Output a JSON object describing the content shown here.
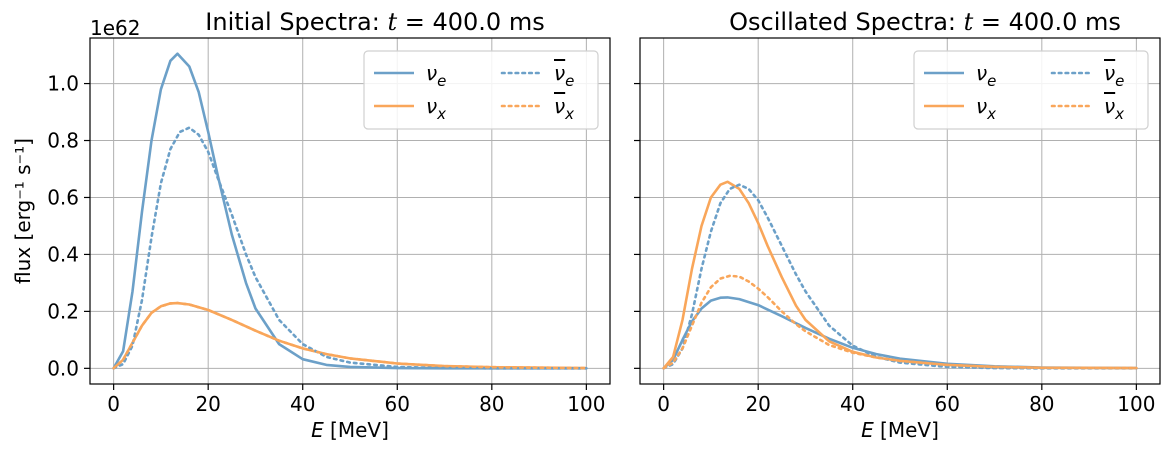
{
  "chart_data": [
    {
      "type": "line",
      "title": "Initial Spectra: t = 400.0 ms",
      "xlabel": "E [MeV]",
      "ylabel": "flux [erg⁻¹ s⁻¹]",
      "y_offset_label": "1e62",
      "xlim": [
        -5,
        105
      ],
      "ylim": [
        -0.055,
        1.16
      ],
      "xticks": [
        0,
        20,
        40,
        60,
        80,
        100
      ],
      "yticks": [
        0.0,
        0.2,
        0.4,
        0.6,
        0.8,
        1.0
      ],
      "grid": true,
      "legend_position": "top-right",
      "series": [
        {
          "name": "ν_e",
          "style": "solid",
          "color": "#6ca0c8",
          "x": [
            0,
            2,
            4,
            6,
            8,
            10,
            12,
            13.5,
            16,
            18,
            20,
            22,
            25,
            28,
            30,
            35,
            40,
            45,
            50,
            60,
            70,
            80,
            100
          ],
          "y": [
            0,
            0.06,
            0.27,
            0.55,
            0.8,
            0.98,
            1.08,
            1.105,
            1.06,
            0.97,
            0.83,
            0.68,
            0.47,
            0.3,
            0.21,
            0.085,
            0.032,
            0.012,
            0.005,
            0.001,
            0.0002,
            0,
            0
          ]
        },
        {
          "name": "ν_x",
          "style": "solid",
          "color": "#f9a65a",
          "x": [
            0,
            2,
            4,
            6,
            8,
            10,
            12,
            13.5,
            16,
            20,
            25,
            30,
            35,
            40,
            45,
            50,
            60,
            70,
            80,
            100
          ],
          "y": [
            0,
            0.03,
            0.09,
            0.15,
            0.195,
            0.218,
            0.228,
            0.229,
            0.224,
            0.205,
            0.17,
            0.132,
            0.097,
            0.07,
            0.05,
            0.035,
            0.017,
            0.008,
            0.004,
            0.001
          ]
        },
        {
          "name": "ν̅_e",
          "style": "dotted",
          "color": "#6ca0c8",
          "x": [
            0,
            2,
            4,
            6,
            8,
            10,
            12,
            14,
            16,
            18,
            20,
            22,
            25,
            28,
            30,
            35,
            40,
            45,
            50,
            60,
            70,
            80,
            100
          ],
          "y": [
            0,
            0.015,
            0.08,
            0.24,
            0.46,
            0.65,
            0.77,
            0.83,
            0.845,
            0.82,
            0.76,
            0.67,
            0.54,
            0.4,
            0.32,
            0.17,
            0.085,
            0.04,
            0.02,
            0.005,
            0.001,
            0,
            0
          ]
        },
        {
          "name": "ν̅_x",
          "style": "dotted",
          "color": "#f9a65a",
          "x": [
            0,
            2,
            4,
            6,
            8,
            10,
            12,
            13.5,
            16,
            20,
            25,
            30,
            35,
            40,
            45,
            50,
            60,
            70,
            80,
            100
          ],
          "y": [
            0,
            0.03,
            0.09,
            0.15,
            0.195,
            0.218,
            0.228,
            0.229,
            0.224,
            0.205,
            0.17,
            0.132,
            0.097,
            0.07,
            0.05,
            0.035,
            0.017,
            0.008,
            0.004,
            0.001
          ]
        }
      ]
    },
    {
      "type": "line",
      "title": "Oscillated Spectra: t = 400.0 ms",
      "xlabel": "E [MeV]",
      "ylabel": "",
      "xlim": [
        -5,
        105
      ],
      "ylim": [
        -0.055,
        1.16
      ],
      "xticks": [
        0,
        20,
        40,
        60,
        80,
        100
      ],
      "yticks": [
        0.0,
        0.2,
        0.4,
        0.6,
        0.8,
        1.0
      ],
      "grid": true,
      "legend_position": "top-right",
      "series": [
        {
          "name": "ν_e",
          "style": "solid",
          "color": "#6ca0c8",
          "x": [
            0,
            2,
            4,
            6,
            8,
            10,
            12,
            13.5,
            16,
            20,
            25,
            30,
            35,
            40,
            45,
            50,
            60,
            70,
            80,
            100
          ],
          "y": [
            0,
            0.03,
            0.1,
            0.165,
            0.21,
            0.238,
            0.248,
            0.249,
            0.243,
            0.222,
            0.183,
            0.142,
            0.104,
            0.072,
            0.05,
            0.034,
            0.016,
            0.007,
            0.003,
            0.001
          ]
        },
        {
          "name": "ν_x",
          "style": "solid",
          "color": "#f9a65a",
          "x": [
            0,
            2,
            4,
            6,
            8,
            10,
            12,
            13.5,
            16,
            18,
            20,
            22,
            25,
            28,
            30,
            35,
            40,
            45,
            50,
            60,
            70,
            80,
            100
          ],
          "y": [
            0,
            0.04,
            0.17,
            0.35,
            0.5,
            0.6,
            0.645,
            0.655,
            0.63,
            0.58,
            0.51,
            0.43,
            0.32,
            0.22,
            0.17,
            0.095,
            0.058,
            0.038,
            0.026,
            0.012,
            0.005,
            0.002,
            0.001
          ]
        },
        {
          "name": "ν̅_e",
          "style": "dotted",
          "color": "#6ca0c8",
          "x": [
            0,
            2,
            4,
            6,
            8,
            10,
            12,
            14,
            16,
            18,
            20,
            22,
            25,
            28,
            30,
            35,
            40,
            45,
            50,
            60,
            70,
            80,
            100
          ],
          "y": [
            0,
            0.015,
            0.07,
            0.19,
            0.35,
            0.48,
            0.58,
            0.63,
            0.645,
            0.63,
            0.59,
            0.53,
            0.43,
            0.33,
            0.27,
            0.15,
            0.08,
            0.04,
            0.02,
            0.005,
            0.001,
            0,
            0
          ]
        },
        {
          "name": "ν̅_x",
          "style": "dotted",
          "color": "#f9a65a",
          "x": [
            0,
            2,
            4,
            6,
            8,
            10,
            12,
            14,
            16,
            18,
            20,
            22,
            25,
            28,
            30,
            35,
            40,
            45,
            50,
            60,
            70,
            80,
            100
          ],
          "y": [
            0,
            0.02,
            0.07,
            0.15,
            0.23,
            0.285,
            0.315,
            0.325,
            0.322,
            0.305,
            0.28,
            0.25,
            0.2,
            0.155,
            0.13,
            0.082,
            0.055,
            0.038,
            0.026,
            0.012,
            0.005,
            0.002,
            0.001
          ]
        }
      ]
    }
  ]
}
